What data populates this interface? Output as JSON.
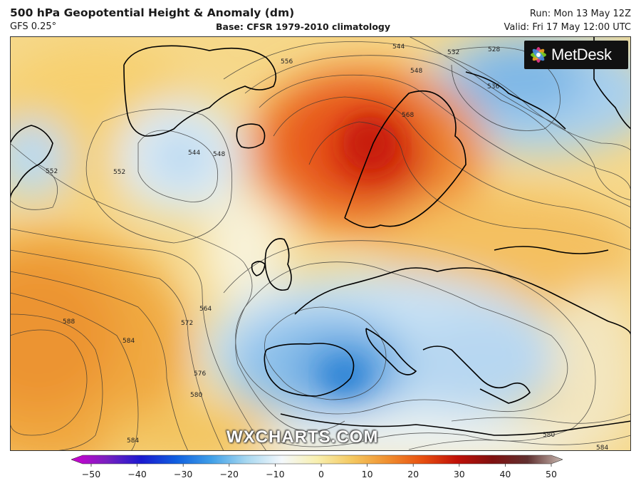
{
  "header": {
    "title": "500 hPa Geopotential Height & Anomaly (dm)",
    "model": "GFS 0.25°",
    "base": "Base: CFSR 1979-2010 climatology",
    "run": "Run: Mon 13 May 12Z",
    "valid": "Valid: Fri 17 May 12:00 UTC"
  },
  "logo": {
    "text": "MetDesk"
  },
  "watermark": "WXCHARTS.COM",
  "colorbar": {
    "ticks": [
      -50,
      -40,
      -30,
      -20,
      -10,
      0,
      10,
      20,
      30,
      40,
      50
    ],
    "colors": [
      "#d000d0",
      "#7a20c0",
      "#1a1ad0",
      "#1060e0",
      "#40a0e8",
      "#a8d8f0",
      "#f4f8fc",
      "#f8f0b0",
      "#f4c860",
      "#f09030",
      "#e85010",
      "#c01008",
      "#801010",
      "#603030",
      "#c8b8b0"
    ]
  },
  "contour_labels": [
    {
      "text": "528"
    },
    {
      "text": "532"
    },
    {
      "text": "536"
    },
    {
      "text": "544"
    },
    {
      "text": "548"
    },
    {
      "text": "552"
    },
    {
      "text": "556"
    },
    {
      "text": "564"
    },
    {
      "text": "568"
    },
    {
      "text": "572"
    },
    {
      "text": "576"
    },
    {
      "text": "580"
    },
    {
      "text": "584"
    },
    {
      "text": "588"
    },
    {
      "text": "544"
    },
    {
      "text": "548"
    },
    {
      "text": "552"
    },
    {
      "text": "584"
    },
    {
      "text": "580"
    },
    {
      "text": "584"
    }
  ]
}
